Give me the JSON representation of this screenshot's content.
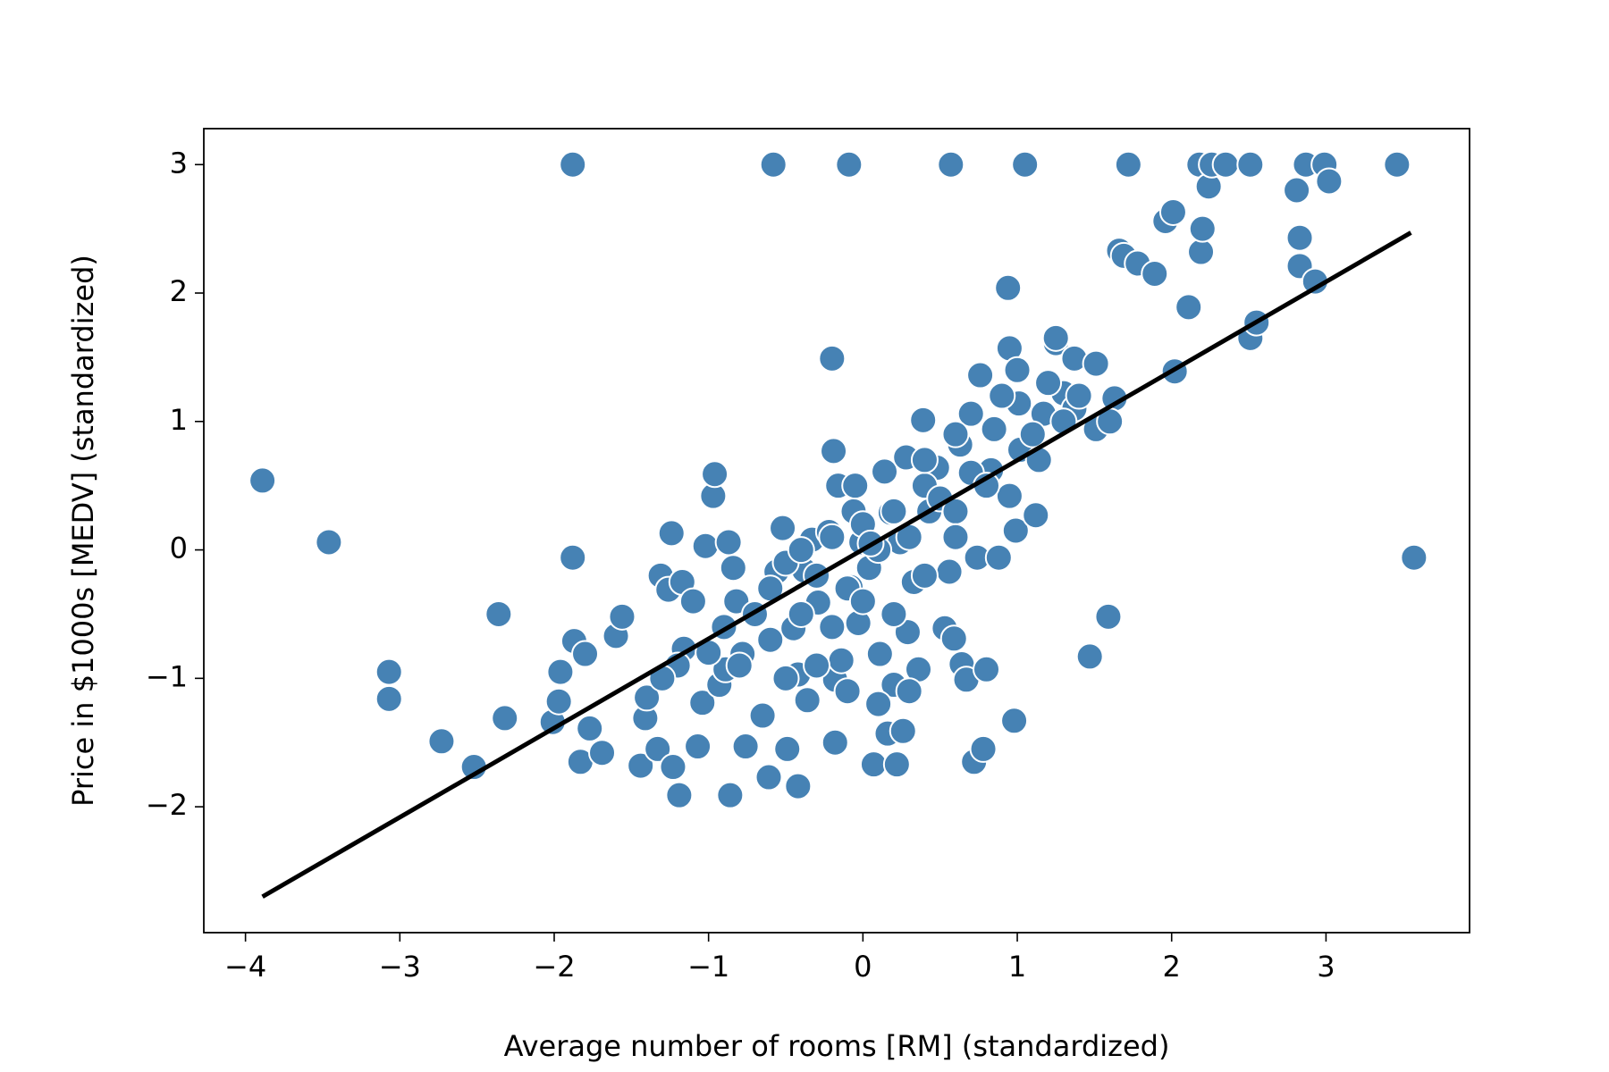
{
  "chart_data": {
    "type": "scatter",
    "xlabel": "Average number of rooms [RM] (standardized)",
    "ylabel": "Price in $1000s [MEDV] (standardized)",
    "color": "#4682b4",
    "edgecolor": "#ffffff",
    "x": [
      -3.89,
      -3.46,
      -3.07,
      -3.07,
      -2.73,
      -2.52,
      -2.36,
      -2.32,
      -2.01,
      -1.97,
      -1.96,
      -1.88,
      -1.88,
      -1.87,
      -1.83,
      -1.8,
      -1.77,
      -1.69,
      -1.6,
      -1.56,
      -1.44,
      -1.41,
      -1.4,
      -1.33,
      -1.31,
      -1.26,
      -1.24,
      -1.23,
      -1.19,
      -1.17,
      -1.16,
      -1.07,
      -1.04,
      -1.02,
      -0.97,
      -0.96,
      -0.93,
      -0.89,
      -0.86,
      -0.87,
      -0.84,
      -0.82,
      -0.78,
      -0.76,
      -0.65,
      -0.61,
      -0.58,
      -0.56,
      -0.52,
      -0.49,
      -0.45,
      -0.42,
      -0.42,
      -0.38,
      -0.36,
      -0.33,
      -0.29,
      -0.22,
      -0.2,
      -0.19,
      -0.18,
      -0.18,
      -0.16,
      -0.14,
      -0.09,
      -0.08,
      -0.06,
      -0.05,
      -0.03,
      -0.01,
      0.04,
      0.07,
      0.11,
      0.14,
      0.16,
      0.18,
      0.2,
      0.22,
      0.24,
      0.26,
      0.28,
      0.29,
      0.33,
      0.36,
      0.39,
      0.43,
      0.48,
      0.53,
      0.56,
      0.57,
      0.59,
      0.63,
      0.64,
      0.67,
      0.7,
      0.72,
      0.74,
      0.76,
      0.78,
      0.8,
      0.83,
      0.85,
      0.88,
      0.94,
      0.95,
      0.95,
      0.98,
      0.99,
      1.0,
      1.01,
      1.02,
      1.05,
      1.12,
      1.14,
      1.17,
      1.25,
      1.3,
      1.37,
      1.37,
      1.47,
      1.51,
      1.51,
      1.59,
      1.63,
      1.66,
      1.69,
      1.72,
      1.78,
      1.89,
      1.96,
      2.01,
      2.02,
      2.11,
      2.18,
      2.19,
      2.2,
      2.24,
      2.26,
      2.35,
      2.51,
      2.51,
      2.55,
      2.81,
      2.83,
      2.83,
      2.87,
      2.93,
      2.99,
      3.02,
      3.46,
      3.57,
      -0.7,
      -0.6,
      -0.5,
      -0.4,
      -0.3,
      -0.2,
      -0.1,
      0.0,
      0.1,
      0.2,
      0.3,
      0.4,
      0.5,
      0.6,
      0.7,
      0.8,
      -0.9,
      -1.0,
      -0.8,
      -0.6,
      -0.4,
      -0.2,
      0.0,
      0.2,
      0.4,
      0.6,
      -0.5,
      -0.3,
      -0.1,
      0.1,
      0.3,
      1.1,
      1.2,
      1.3,
      1.4,
      0.9,
      0.6,
      0.4,
      -1.1,
      -1.2,
      -1.3,
      1.6,
      1.25,
      0.05
    ],
    "values": [
      0.54,
      0.06,
      -0.95,
      -1.16,
      -1.49,
      -1.69,
      -0.5,
      -1.31,
      -1.34,
      -1.18,
      -0.95,
      3.0,
      -0.06,
      -0.71,
      -1.65,
      -0.81,
      -1.39,
      -1.58,
      -0.67,
      -0.52,
      -1.68,
      -1.31,
      -1.15,
      -1.55,
      -0.2,
      -0.31,
      0.13,
      -1.69,
      -1.91,
      -0.25,
      -0.77,
      -1.53,
      -1.19,
      0.03,
      0.42,
      0.59,
      -1.05,
      -0.93,
      -1.91,
      0.06,
      -0.14,
      -0.4,
      -0.81,
      -1.53,
      -1.29,
      -1.77,
      3.0,
      -0.17,
      0.17,
      -1.55,
      -0.61,
      -1.84,
      -0.97,
      -0.16,
      -1.17,
      0.08,
      -0.41,
      0.14,
      1.49,
      0.77,
      -1.5,
      -1.01,
      0.5,
      -0.86,
      3.0,
      -0.29,
      0.3,
      0.5,
      -0.57,
      0.06,
      -0.14,
      -1.67,
      -0.81,
      0.61,
      -1.43,
      0.29,
      -1.05,
      -1.67,
      0.06,
      -1.41,
      0.72,
      -0.64,
      -0.25,
      -0.93,
      1.01,
      0.3,
      0.64,
      -0.61,
      -0.17,
      3.0,
      -0.69,
      0.82,
      -0.89,
      -1.01,
      1.06,
      -1.65,
      -0.06,
      1.36,
      -1.55,
      -0.93,
      0.62,
      0.94,
      -0.06,
      2.04,
      1.57,
      0.42,
      -1.33,
      0.15,
      1.4,
      1.14,
      0.78,
      3.0,
      0.27,
      0.7,
      1.06,
      1.61,
      1.22,
      1.49,
      1.1,
      -0.83,
      0.94,
      1.45,
      -0.52,
      1.18,
      2.33,
      2.29,
      3.0,
      2.23,
      2.15,
      2.56,
      2.63,
      1.39,
      1.89,
      3.0,
      2.32,
      2.5,
      2.83,
      3.0,
      3.0,
      3.0,
      1.65,
      1.77,
      2.8,
      2.43,
      2.21,
      3.0,
      2.09,
      3.0,
      2.87,
      3.0,
      -0.06,
      -0.5,
      -0.3,
      -0.1,
      0.0,
      -0.2,
      0.1,
      -0.3,
      0.2,
      0.0,
      0.3,
      0.1,
      0.5,
      0.4,
      0.3,
      0.6,
      0.5,
      -0.6,
      -0.8,
      -0.9,
      -0.7,
      -0.5,
      -0.6,
      -0.4,
      -0.5,
      -0.2,
      0.1,
      -1.0,
      -0.9,
      -1.1,
      -1.2,
      -1.1,
      0.9,
      1.3,
      1.0,
      1.2,
      1.2,
      0.9,
      0.7,
      -0.4,
      -0.9,
      -1.0,
      1.0,
      1.65,
      0.05
    ],
    "fit_line": {
      "x": [
        -3.89,
        3.55
      ],
      "y": [
        -2.7,
        2.47
      ],
      "color": "#000000"
    },
    "xlim": [
      -4.27,
      3.93
    ],
    "ylim": [
      -2.98,
      3.28
    ],
    "xticks": [
      {
        "value": -4,
        "label": "−4"
      },
      {
        "value": -3,
        "label": "−3"
      },
      {
        "value": -2,
        "label": "−2"
      },
      {
        "value": -1,
        "label": "−1"
      },
      0,
      1,
      2,
      3
    ],
    "yticks": [
      {
        "value": -2,
        "label": "−2"
      },
      {
        "value": -1,
        "label": "−1"
      },
      0,
      1,
      2,
      3
    ]
  }
}
